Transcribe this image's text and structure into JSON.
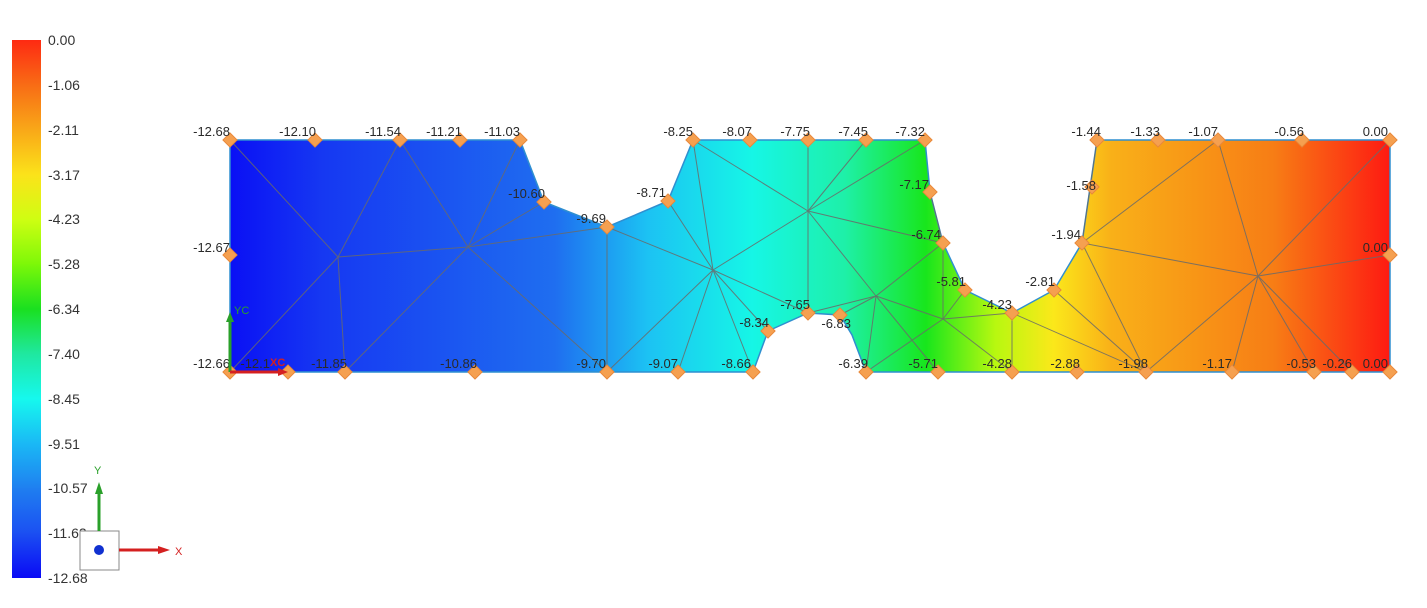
{
  "legend": {
    "labels": [
      "0.00",
      "-1.06",
      "-2.11",
      "-3.17",
      "-4.23",
      "-5.28",
      "-6.34",
      "-7.40",
      "-8.45",
      "-9.51",
      "-10.57",
      "-11.62",
      "-12.68"
    ],
    "colors": [
      "#fe2a12",
      "#f86c15",
      "#f9a818",
      "#fbe31a",
      "#cffe12",
      "#7cf808",
      "#1ae020",
      "#1fe8a0",
      "#16f8ee",
      "#1ab8f5",
      "#1f7ff0",
      "#1b4ff2",
      "#0a0af5"
    ]
  },
  "triad": {
    "x_label": "X",
    "y_label": "Y"
  },
  "csys": {
    "x_label": "XC",
    "y_label": "YC"
  },
  "nodes": [
    {
      "v": "-12.68"
    },
    {
      "v": "-12.10"
    },
    {
      "v": "-11.54"
    },
    {
      "v": "-11.21"
    },
    {
      "v": "-11.03"
    },
    {
      "v": "-10.60"
    },
    {
      "v": "-9.69"
    },
    {
      "v": "-8.71"
    },
    {
      "v": "-8.25"
    },
    {
      "v": "-8.07"
    },
    {
      "v": "-7.75"
    },
    {
      "v": "-7.45"
    },
    {
      "v": "-7.32"
    },
    {
      "v": "-7.17"
    },
    {
      "v": "-6.74"
    },
    {
      "v": "-5.81"
    },
    {
      "v": "-4.23"
    },
    {
      "v": "-2.81"
    },
    {
      "v": "-1.94"
    },
    {
      "v": "-1.58"
    },
    {
      "v": "-1.44"
    },
    {
      "v": "-1.33"
    },
    {
      "v": "-1.07"
    },
    {
      "v": "-0.56"
    },
    {
      "v": "0.00"
    },
    {
      "v": "0.00"
    },
    {
      "v": "0.00"
    },
    {
      "v": "-0.26"
    },
    {
      "v": "-0.53"
    },
    {
      "v": "-1.17"
    },
    {
      "v": "-1.98"
    },
    {
      "v": "-2.88"
    },
    {
      "v": "-4.28"
    },
    {
      "v": "-5.71"
    },
    {
      "v": "-6.39"
    },
    {
      "v": "-6.83"
    },
    {
      "v": "-7.65"
    },
    {
      "v": "-8.34"
    },
    {
      "v": "-8.66"
    },
    {
      "v": "-9.07"
    },
    {
      "v": "-9.70"
    },
    {
      "v": "-10.86"
    },
    {
      "v": "-11.85"
    },
    {
      "v": "-12.1"
    },
    {
      "v": "-12.66"
    },
    {
      "v": "-12.67"
    }
  ]
}
